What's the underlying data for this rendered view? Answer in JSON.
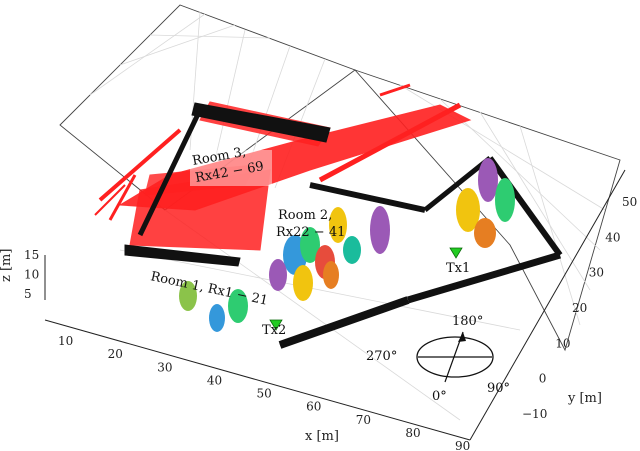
{
  "chart_data": {
    "type": "scatter",
    "dimensions": 3,
    "grid": true,
    "axes": {
      "x": {
        "label": "x [m]",
        "ticks": [
          10,
          20,
          30,
          40,
          50,
          60,
          70,
          80,
          90
        ]
      },
      "y": {
        "label": "y [m]",
        "ticks": [
          -10,
          0,
          10,
          20,
          30,
          40,
          50
        ]
      },
      "z": {
        "label": "z [m]",
        "ticks": [
          5,
          10,
          15
        ]
      }
    },
    "room_labels": [
      {
        "id": "room1",
        "lines": [
          "Room 1, Rx1 − 21"
        ]
      },
      {
        "id": "room2",
        "lines": [
          "Room 2,",
          "Rx22 − 41"
        ]
      },
      {
        "id": "room3",
        "lines": [
          "Room 3,",
          "Rx42 − 69"
        ]
      }
    ],
    "transmitters": [
      {
        "label": "Tx1",
        "color": "#22cc22"
      },
      {
        "label": "Tx2",
        "color": "#22cc22"
      }
    ],
    "direction_labels": [
      "180°",
      "270°",
      "90°",
      "0°"
    ],
    "colors": {
      "room3_points": "#ff2020",
      "walls": "#111111",
      "receivers": [
        "#9b59b6",
        "#f1c40f",
        "#3498db",
        "#e67e22",
        "#2ecc71",
        "#e74c3c",
        "#1abc9c"
      ]
    }
  }
}
